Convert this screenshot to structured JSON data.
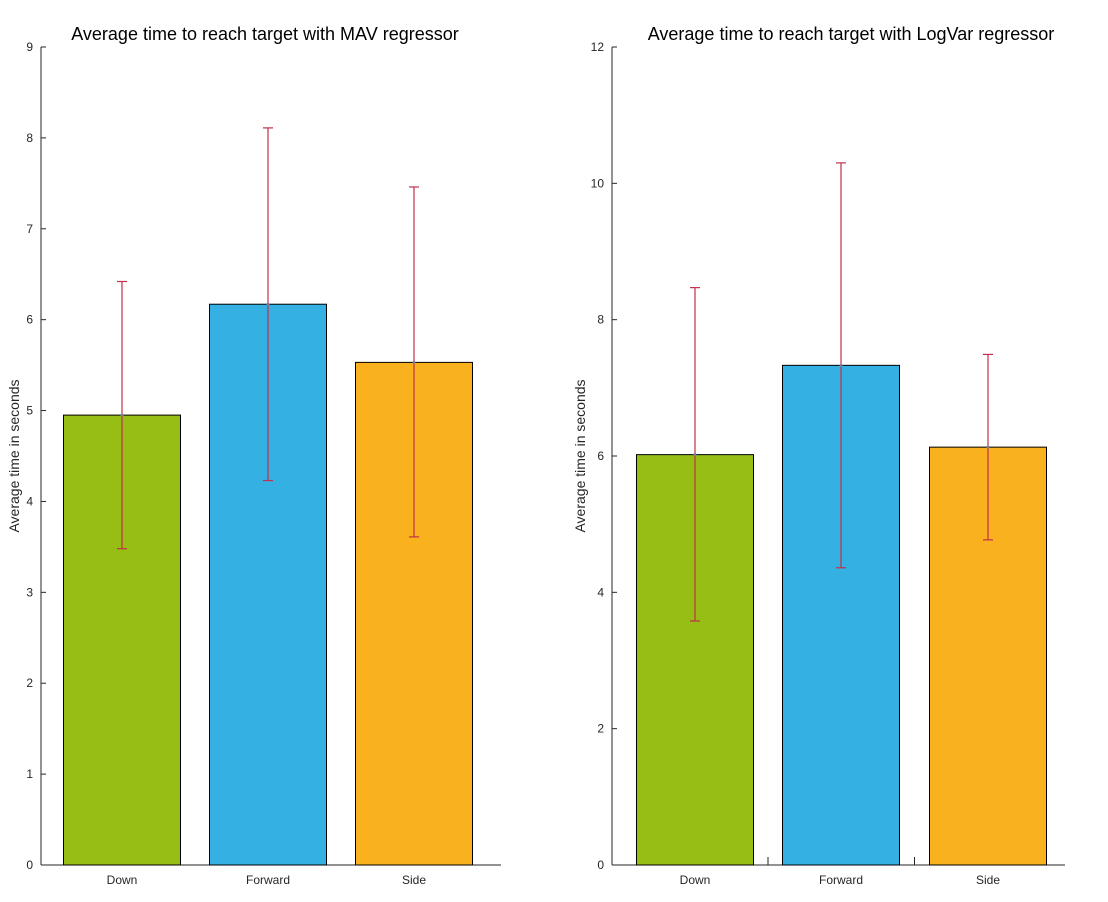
{
  "chart_data": [
    {
      "type": "bar",
      "title": "Average time to reach target with MAV regressor",
      "ylabel": "Average time in seconds",
      "xlabel": "",
      "categories": [
        "Down",
        "Forward",
        "Side"
      ],
      "values": [
        4.95,
        6.17,
        5.53
      ],
      "error_low": [
        3.48,
        4.23,
        3.61
      ],
      "error_high": [
        6.42,
        8.11,
        7.46
      ],
      "ylim": [
        0,
        9
      ],
      "yticks": [
        0,
        1,
        2,
        3,
        4,
        5,
        6,
        7,
        8,
        9
      ],
      "grid": false,
      "colors": [
        "#96be14",
        "#35b0e3",
        "#f9b11e"
      ],
      "error_color": "#c0314a"
    },
    {
      "type": "bar",
      "title": "Average time to reach target with LogVar regressor",
      "ylabel": "Average time in seconds",
      "xlabel": "",
      "categories": [
        "Down",
        "Forward",
        "Side"
      ],
      "values": [
        6.02,
        7.33,
        6.13
      ],
      "error_low": [
        3.58,
        4.36,
        4.77
      ],
      "error_high": [
        8.47,
        10.3,
        7.49
      ],
      "ylim": [
        0,
        12
      ],
      "yticks": [
        0,
        2,
        4,
        6,
        8,
        10,
        12
      ],
      "grid": false,
      "colors": [
        "#96be14",
        "#35b0e3",
        "#f9b11e"
      ],
      "error_color": "#c0314a"
    }
  ]
}
